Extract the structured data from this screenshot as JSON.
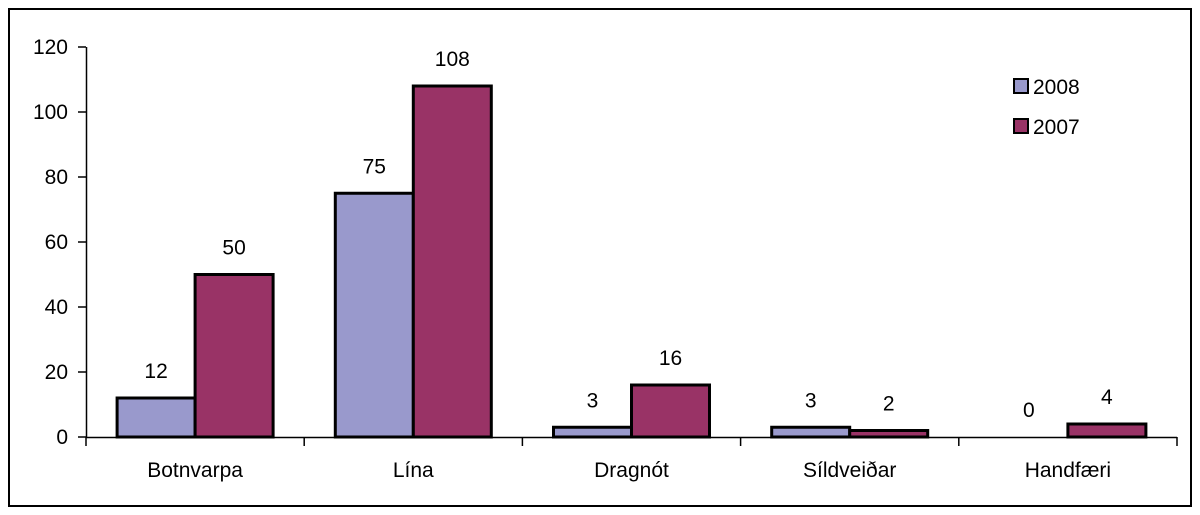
{
  "chart_data": {
    "type": "bar",
    "categories": [
      "Botnvarpa",
      "Lína",
      "Dragnót",
      "Síldveiðar",
      "Handfæri"
    ],
    "series": [
      {
        "name": "2008",
        "values": [
          12,
          75,
          3,
          3,
          0
        ],
        "color": "#9999cc"
      },
      {
        "name": "2007",
        "values": [
          50,
          108,
          16,
          2,
          4
        ],
        "color": "#993366"
      }
    ],
    "ylim": [
      0,
      120
    ],
    "yticks": [
      0,
      20,
      40,
      60,
      80,
      100,
      120
    ],
    "grid": false,
    "legend_position": "top-right",
    "data_labels": true
  }
}
